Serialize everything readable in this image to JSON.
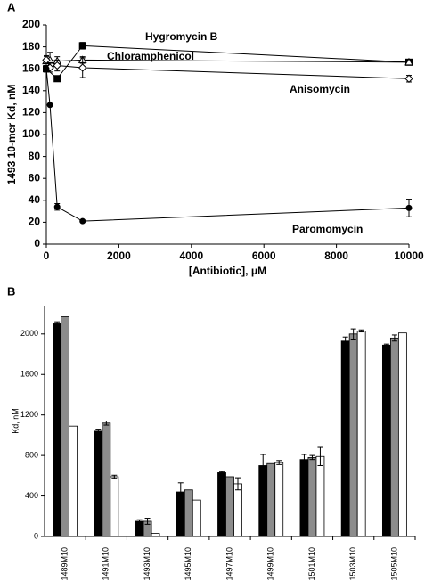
{
  "chart_data": [
    {
      "type": "line",
      "panel": "A",
      "ylabel": "1493 10-mer Kd, nM",
      "xlabel": "[Antibiotic], μM",
      "xlim": [
        0,
        10000
      ],
      "xticks": [
        0,
        2000,
        4000,
        6000,
        8000,
        10000
      ],
      "ylim": [
        0,
        200
      ],
      "yticks": [
        0,
        20,
        40,
        60,
        80,
        100,
        120,
        140,
        160,
        180,
        200
      ],
      "series": [
        {
          "name": "Hygromycin B",
          "color": "#000000",
          "marker": "square",
          "filled": true,
          "x": [
            0,
            300,
            1000,
            10000
          ],
          "values": [
            160,
            151,
            181,
            166
          ],
          "errors": [
            2,
            2,
            3,
            2
          ]
        },
        {
          "name": "Chloramphenicol",
          "color": "#000000",
          "marker": "triangle",
          "filled": false,
          "x": [
            0,
            100,
            300,
            1000,
            10000
          ],
          "values": [
            167,
            168,
            167,
            168,
            166
          ],
          "errors": [
            5,
            7,
            4,
            3,
            2
          ]
        },
        {
          "name": "Anisomycin",
          "color": "#000000",
          "marker": "diamond",
          "filled": false,
          "x": [
            0,
            100,
            300,
            1000,
            10000
          ],
          "values": [
            168,
            161,
            163,
            161,
            151
          ],
          "errors": [
            3,
            4,
            5,
            9,
            3
          ]
        },
        {
          "name": "Paromomycin",
          "color": "#000000",
          "marker": "circle",
          "filled": true,
          "x": [
            0,
            100,
            300,
            1000,
            10000
          ],
          "values": [
            160,
            127,
            34,
            21,
            33
          ],
          "errors": [
            3,
            1,
            3,
            1,
            8
          ]
        }
      ]
    },
    {
      "type": "bar",
      "panel": "B",
      "ylabel": "Kd, nM",
      "categories": [
        "1489M10",
        "1491M10",
        "1493M10",
        "1495M10",
        "1497M10",
        "1499M10",
        "1501M10",
        "1503M10",
        "1505M10"
      ],
      "ylim": [
        0,
        2280
      ],
      "yticks": [
        0,
        400,
        800,
        1200,
        1600,
        2000
      ],
      "series": [
        {
          "color": "#000000",
          "values": [
            2100,
            1040,
            150,
            440,
            630,
            700,
            760,
            1930,
            1890
          ],
          "errors": [
            20,
            20,
            15,
            90,
            10,
            110,
            50,
            40,
            10
          ]
        },
        {
          "color": "#8c8c8c",
          "values": [
            2170,
            1120,
            150,
            460,
            590,
            720,
            780,
            2000,
            1960
          ],
          "errors": [
            0,
            20,
            30,
            0,
            0,
            0,
            20,
            50,
            30
          ]
        },
        {
          "color": "#ffffff",
          "values": [
            1090,
            590,
            30,
            360,
            520,
            730,
            790,
            2030,
            2010
          ],
          "errors": [
            0,
            15,
            0,
            0,
            60,
            20,
            90,
            10,
            0
          ]
        }
      ]
    }
  ]
}
